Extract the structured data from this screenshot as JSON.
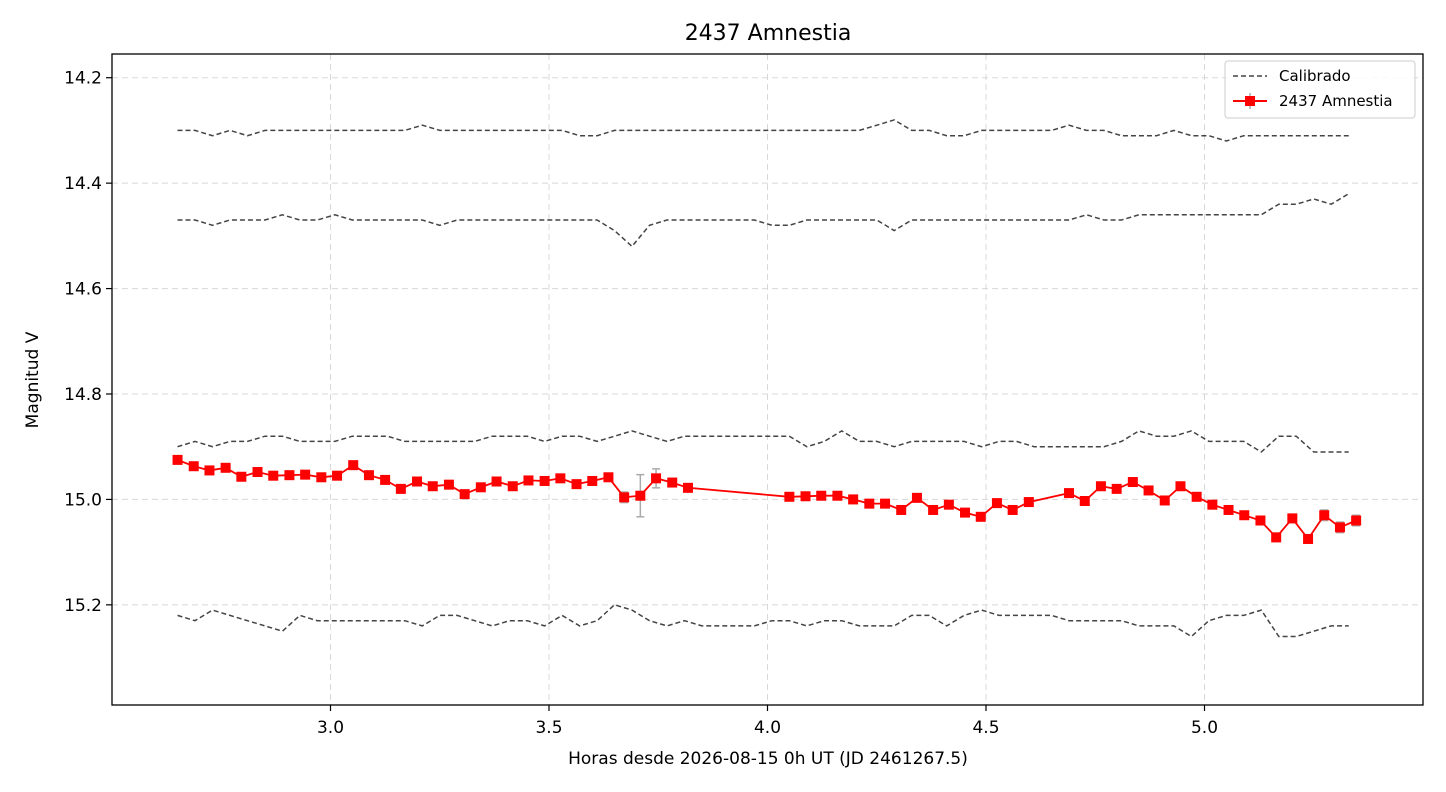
{
  "chart_data": {
    "type": "line",
    "title": "2437 Amnestia",
    "xlabel": "Horas desde 2026-08-15 0h UT (JD 2461267.5)",
    "ylabel": "Magnitud V",
    "xlim": [
      2.5,
      5.5
    ],
    "ylim": [
      15.39,
      14.155
    ],
    "y_inverted": true,
    "grid": true,
    "legend_position": "top-right",
    "x_ticks": [
      3.0,
      3.5,
      4.0,
      4.5,
      5.0
    ],
    "x_tick_labels": [
      "3.0",
      "3.5",
      "4.0",
      "4.5",
      "5.0"
    ],
    "y_ticks": [
      14.2,
      14.4,
      14.6,
      14.8,
      15.0,
      15.2
    ],
    "y_tick_labels": [
      "14.2",
      "14.4",
      "14.6",
      "14.8",
      "15.0",
      "15.2"
    ],
    "legend": [
      {
        "label": "Calibrado",
        "style": "dashed",
        "color": "#444444"
      },
      {
        "label": "2437 Amnestia",
        "style": "solid-square",
        "color": "#ff0000"
      }
    ],
    "calibrated_series": [
      {
        "name": "Calibrado",
        "x": [
          2.65,
          2.69,
          2.73,
          2.77,
          2.81,
          2.85,
          2.89,
          2.93,
          2.97,
          3.01,
          3.05,
          3.09,
          3.13,
          3.17,
          3.21,
          3.25,
          3.29,
          3.33,
          3.37,
          3.41,
          3.45,
          3.49,
          3.53,
          3.57,
          3.61,
          3.65,
          3.69,
          3.73,
          3.77,
          3.81,
          3.85,
          3.89,
          3.93,
          3.97,
          4.01,
          4.05,
          4.09,
          4.13,
          4.17,
          4.21,
          4.25,
          4.29,
          4.33,
          4.37,
          4.41,
          4.45,
          4.49,
          4.53,
          4.57,
          4.61,
          4.65,
          4.69,
          4.73,
          4.77,
          4.81,
          4.85,
          4.89,
          4.93,
          4.97,
          5.01,
          5.05,
          5.09,
          5.13,
          5.17,
          5.21,
          5.25,
          5.29,
          5.33
        ],
        "y": [
          14.3,
          14.3,
          14.31,
          14.3,
          14.31,
          14.3,
          14.3,
          14.3,
          14.3,
          14.3,
          14.3,
          14.3,
          14.3,
          14.3,
          14.29,
          14.3,
          14.3,
          14.3,
          14.3,
          14.3,
          14.3,
          14.3,
          14.3,
          14.31,
          14.31,
          14.3,
          14.3,
          14.3,
          14.3,
          14.3,
          14.3,
          14.3,
          14.3,
          14.3,
          14.3,
          14.3,
          14.3,
          14.3,
          14.3,
          14.3,
          14.29,
          14.28,
          14.3,
          14.3,
          14.31,
          14.31,
          14.3,
          14.3,
          14.3,
          14.3,
          14.3,
          14.29,
          14.3,
          14.3,
          14.31,
          14.31,
          14.31,
          14.3,
          14.31,
          14.31,
          14.32,
          14.31,
          14.31,
          14.31,
          14.31,
          14.31,
          14.31,
          14.31
        ]
      },
      {
        "name": "Calibrado",
        "x": [
          2.65,
          2.69,
          2.73,
          2.77,
          2.81,
          2.85,
          2.89,
          2.93,
          2.97,
          3.01,
          3.05,
          3.09,
          3.13,
          3.17,
          3.21,
          3.25,
          3.29,
          3.33,
          3.37,
          3.41,
          3.45,
          3.49,
          3.53,
          3.57,
          3.61,
          3.65,
          3.69,
          3.73,
          3.77,
          3.81,
          3.85,
          3.89,
          3.93,
          3.97,
          4.01,
          4.05,
          4.09,
          4.13,
          4.17,
          4.21,
          4.25,
          4.29,
          4.33,
          4.37,
          4.41,
          4.45,
          4.49,
          4.53,
          4.57,
          4.61,
          4.65,
          4.69,
          4.73,
          4.77,
          4.81,
          4.85,
          4.89,
          4.93,
          4.97,
          5.01,
          5.05,
          5.09,
          5.13,
          5.17,
          5.21,
          5.25,
          5.29,
          5.33
        ],
        "y": [
          14.47,
          14.47,
          14.48,
          14.47,
          14.47,
          14.47,
          14.46,
          14.47,
          14.47,
          14.46,
          14.47,
          14.47,
          14.47,
          14.47,
          14.47,
          14.48,
          14.47,
          14.47,
          14.47,
          14.47,
          14.47,
          14.47,
          14.47,
          14.47,
          14.47,
          14.49,
          14.52,
          14.48,
          14.47,
          14.47,
          14.47,
          14.47,
          14.47,
          14.47,
          14.48,
          14.48,
          14.47,
          14.47,
          14.47,
          14.47,
          14.47,
          14.49,
          14.47,
          14.47,
          14.47,
          14.47,
          14.47,
          14.47,
          14.47,
          14.47,
          14.47,
          14.47,
          14.46,
          14.47,
          14.47,
          14.46,
          14.46,
          14.46,
          14.46,
          14.46,
          14.46,
          14.46,
          14.46,
          14.44,
          14.44,
          14.43,
          14.44,
          14.42
        ]
      },
      {
        "name": "Calibrado",
        "x": [
          2.65,
          2.69,
          2.73,
          2.77,
          2.81,
          2.85,
          2.89,
          2.93,
          2.97,
          3.01,
          3.05,
          3.09,
          3.13,
          3.17,
          3.21,
          3.25,
          3.29,
          3.33,
          3.37,
          3.41,
          3.45,
          3.49,
          3.53,
          3.57,
          3.61,
          3.65,
          3.69,
          3.73,
          3.77,
          3.81,
          3.85,
          3.89,
          3.93,
          3.97,
          4.01,
          4.05,
          4.09,
          4.13,
          4.17,
          4.21,
          4.25,
          4.29,
          4.33,
          4.37,
          4.41,
          4.45,
          4.49,
          4.53,
          4.57,
          4.61,
          4.65,
          4.69,
          4.73,
          4.77,
          4.81,
          4.85,
          4.89,
          4.93,
          4.97,
          5.01,
          5.05,
          5.09,
          5.13,
          5.17,
          5.21,
          5.25,
          5.29,
          5.33
        ],
        "y": [
          14.9,
          14.89,
          14.9,
          14.89,
          14.89,
          14.88,
          14.88,
          14.89,
          14.89,
          14.89,
          14.88,
          14.88,
          14.88,
          14.89,
          14.89,
          14.89,
          14.89,
          14.89,
          14.88,
          14.88,
          14.88,
          14.89,
          14.88,
          14.88,
          14.89,
          14.88,
          14.87,
          14.88,
          14.89,
          14.88,
          14.88,
          14.88,
          14.88,
          14.88,
          14.88,
          14.88,
          14.9,
          14.89,
          14.87,
          14.89,
          14.89,
          14.9,
          14.89,
          14.89,
          14.89,
          14.89,
          14.9,
          14.89,
          14.89,
          14.9,
          14.9,
          14.9,
          14.9,
          14.9,
          14.89,
          14.87,
          14.88,
          14.88,
          14.87,
          14.89,
          14.89,
          14.89,
          14.91,
          14.88,
          14.88,
          14.91,
          14.91,
          14.91
        ]
      },
      {
        "name": "Calibrado",
        "x": [
          2.65,
          2.69,
          2.73,
          2.77,
          2.81,
          2.85,
          2.89,
          2.93,
          2.97,
          3.01,
          3.05,
          3.09,
          3.13,
          3.17,
          3.21,
          3.25,
          3.29,
          3.33,
          3.37,
          3.41,
          3.45,
          3.49,
          3.53,
          3.57,
          3.61,
          3.65,
          3.69,
          3.73,
          3.77,
          3.81,
          3.85,
          3.89,
          3.93,
          3.97,
          4.01,
          4.05,
          4.09,
          4.13,
          4.17,
          4.21,
          4.25,
          4.29,
          4.33,
          4.37,
          4.41,
          4.45,
          4.49,
          4.53,
          4.57,
          4.61,
          4.65,
          4.69,
          4.73,
          4.77,
          4.81,
          4.85,
          4.89,
          4.93,
          4.97,
          5.01,
          5.05,
          5.09,
          5.13,
          5.17,
          5.21,
          5.25,
          5.29,
          5.33
        ],
        "y": [
          15.22,
          15.23,
          15.21,
          15.22,
          15.23,
          15.24,
          15.25,
          15.22,
          15.23,
          15.23,
          15.23,
          15.23,
          15.23,
          15.23,
          15.24,
          15.22,
          15.22,
          15.23,
          15.24,
          15.23,
          15.23,
          15.24,
          15.22,
          15.24,
          15.23,
          15.2,
          15.21,
          15.23,
          15.24,
          15.23,
          15.24,
          15.24,
          15.24,
          15.24,
          15.23,
          15.23,
          15.24,
          15.23,
          15.23,
          15.24,
          15.24,
          15.24,
          15.22,
          15.22,
          15.24,
          15.22,
          15.21,
          15.22,
          15.22,
          15.22,
          15.22,
          15.23,
          15.23,
          15.23,
          15.23,
          15.24,
          15.24,
          15.24,
          15.26,
          15.23,
          15.22,
          15.22,
          15.21,
          15.26,
          15.26,
          15.25,
          15.24,
          15.24
        ]
      }
    ],
    "series": [
      {
        "name": "2437 Amnestia",
        "color": "#ff0000",
        "x": [
          2.65,
          2.687,
          2.723,
          2.76,
          2.796,
          2.833,
          2.869,
          2.906,
          2.942,
          2.979,
          3.015,
          3.052,
          3.088,
          3.125,
          3.161,
          3.198,
          3.234,
          3.271,
          3.307,
          3.344,
          3.38,
          3.417,
          3.453,
          3.49,
          3.526,
          3.563,
          3.599,
          3.636,
          3.672,
          3.709,
          3.745,
          3.782,
          3.818,
          4.05,
          4.087,
          4.123,
          4.16,
          4.196,
          4.233,
          4.269,
          4.306,
          4.342,
          4.379,
          4.415,
          4.452,
          4.488,
          4.525,
          4.561,
          4.598,
          4.69,
          4.726,
          4.763,
          4.799,
          4.836,
          4.872,
          4.909,
          4.945,
          4.982,
          5.018,
          5.055,
          5.091,
          5.128,
          5.164,
          5.201,
          5.237,
          5.274,
          5.31,
          5.347
        ],
        "y": [
          14.925,
          14.937,
          14.945,
          14.94,
          14.957,
          14.948,
          14.955,
          14.954,
          14.953,
          14.958,
          14.955,
          14.935,
          14.954,
          14.963,
          14.98,
          14.966,
          14.975,
          14.972,
          14.99,
          14.977,
          14.966,
          14.975,
          14.964,
          14.965,
          14.96,
          14.971,
          14.965,
          14.958,
          14.996,
          14.993,
          14.96,
          14.968,
          14.978,
          14.995,
          14.994,
          14.993,
          14.993,
          15.0,
          15.008,
          15.008,
          15.02,
          14.997,
          15.02,
          15.01,
          15.025,
          15.033,
          15.007,
          15.02,
          15.005,
          14.988,
          15.003,
          14.975,
          14.98,
          14.967,
          14.983,
          15.002,
          14.975,
          14.995,
          15.01,
          15.02,
          15.03,
          15.04,
          15.072,
          15.036,
          15.075,
          15.03,
          15.053,
          15.04
        ],
        "yerr": [
          0.004,
          0.004,
          0.004,
          0.004,
          0.004,
          0.004,
          0.004,
          0.004,
          0.004,
          0.004,
          0.004,
          0.004,
          0.004,
          0.004,
          0.004,
          0.004,
          0.004,
          0.004,
          0.004,
          0.004,
          0.004,
          0.004,
          0.004,
          0.004,
          0.004,
          0.004,
          0.004,
          0.004,
          0.01,
          0.04,
          0.018,
          0.004,
          0.004,
          0.004,
          0.004,
          0.004,
          0.004,
          0.004,
          0.004,
          0.004,
          0.004,
          0.004,
          0.004,
          0.004,
          0.004,
          0.004,
          0.004,
          0.004,
          0.004,
          0.004,
          0.004,
          0.004,
          0.004,
          0.004,
          0.004,
          0.004,
          0.004,
          0.004,
          0.004,
          0.004,
          0.004,
          0.004,
          0.008,
          0.008,
          0.008,
          0.01,
          0.01,
          0.01
        ]
      }
    ]
  }
}
